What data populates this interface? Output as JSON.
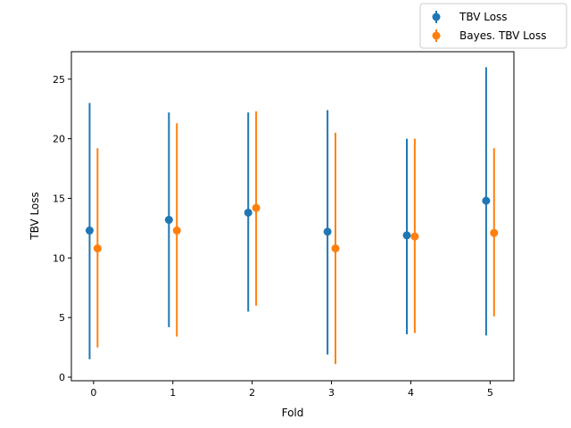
{
  "chart_data": {
    "type": "scatter",
    "xlabel": "Fold",
    "ylabel": "TBV Loss",
    "xlim": [
      -0.28,
      5.3
    ],
    "ylim": [
      -0.3,
      27.3
    ],
    "xticks": [
      0,
      1,
      2,
      3,
      4,
      5
    ],
    "yticks": [
      0,
      5,
      10,
      15,
      20,
      25
    ],
    "grid": false,
    "legend_position": "upper-right outside",
    "series": [
      {
        "name": "TBV Loss",
        "color": "#1f77b4",
        "x": [
          -0.05,
          0.95,
          1.95,
          2.95,
          3.95,
          4.95
        ],
        "y": [
          12.3,
          13.2,
          13.8,
          12.2,
          11.9,
          14.8
        ],
        "err_low": [
          1.5,
          4.2,
          5.5,
          1.9,
          3.6,
          3.5
        ],
        "err_high": [
          23.0,
          22.2,
          22.2,
          22.4,
          20.0,
          26.0
        ]
      },
      {
        "name": "Bayes. TBV Loss",
        "color": "#ff7f0e",
        "x": [
          0.05,
          1.05,
          2.05,
          3.05,
          4.05,
          5.05
        ],
        "y": [
          10.8,
          12.3,
          14.2,
          10.8,
          11.8,
          12.1
        ],
        "err_low": [
          2.5,
          3.4,
          6.0,
          1.1,
          3.7,
          5.1
        ],
        "err_high": [
          19.2,
          21.3,
          22.3,
          20.5,
          20.0,
          19.2
        ]
      }
    ]
  }
}
